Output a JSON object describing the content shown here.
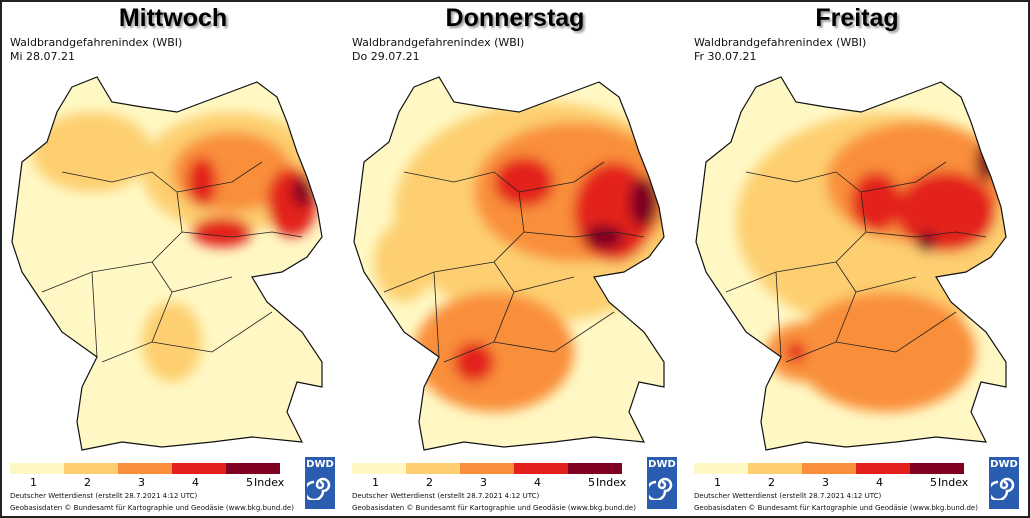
{
  "map_title": "Waldbrandgefahrenindex (WBI)",
  "panels": [
    {
      "day": "Mittwoch",
      "date": "Mi 28.07.21"
    },
    {
      "day": "Donnerstag",
      "date": "Do 29.07.21"
    },
    {
      "day": "Freitag",
      "date": "Fr 30.07.21"
    }
  ],
  "legend": {
    "labels": [
      "1",
      "2",
      "3",
      "4",
      "5"
    ],
    "unit": "Index",
    "colors": [
      "#fff8c4",
      "#fdcf70",
      "#f98f3a",
      "#e3201c",
      "#7f0020"
    ]
  },
  "credits": {
    "line1": "Deutscher Wetterdienst (erstellt 28.7.2021 4:12 UTC)",
    "line2": "Geobasisdaten © Bundesamt für Kartographie und Geodäsie (www.bkg.bund.de)"
  },
  "logo_text": "DWD"
}
